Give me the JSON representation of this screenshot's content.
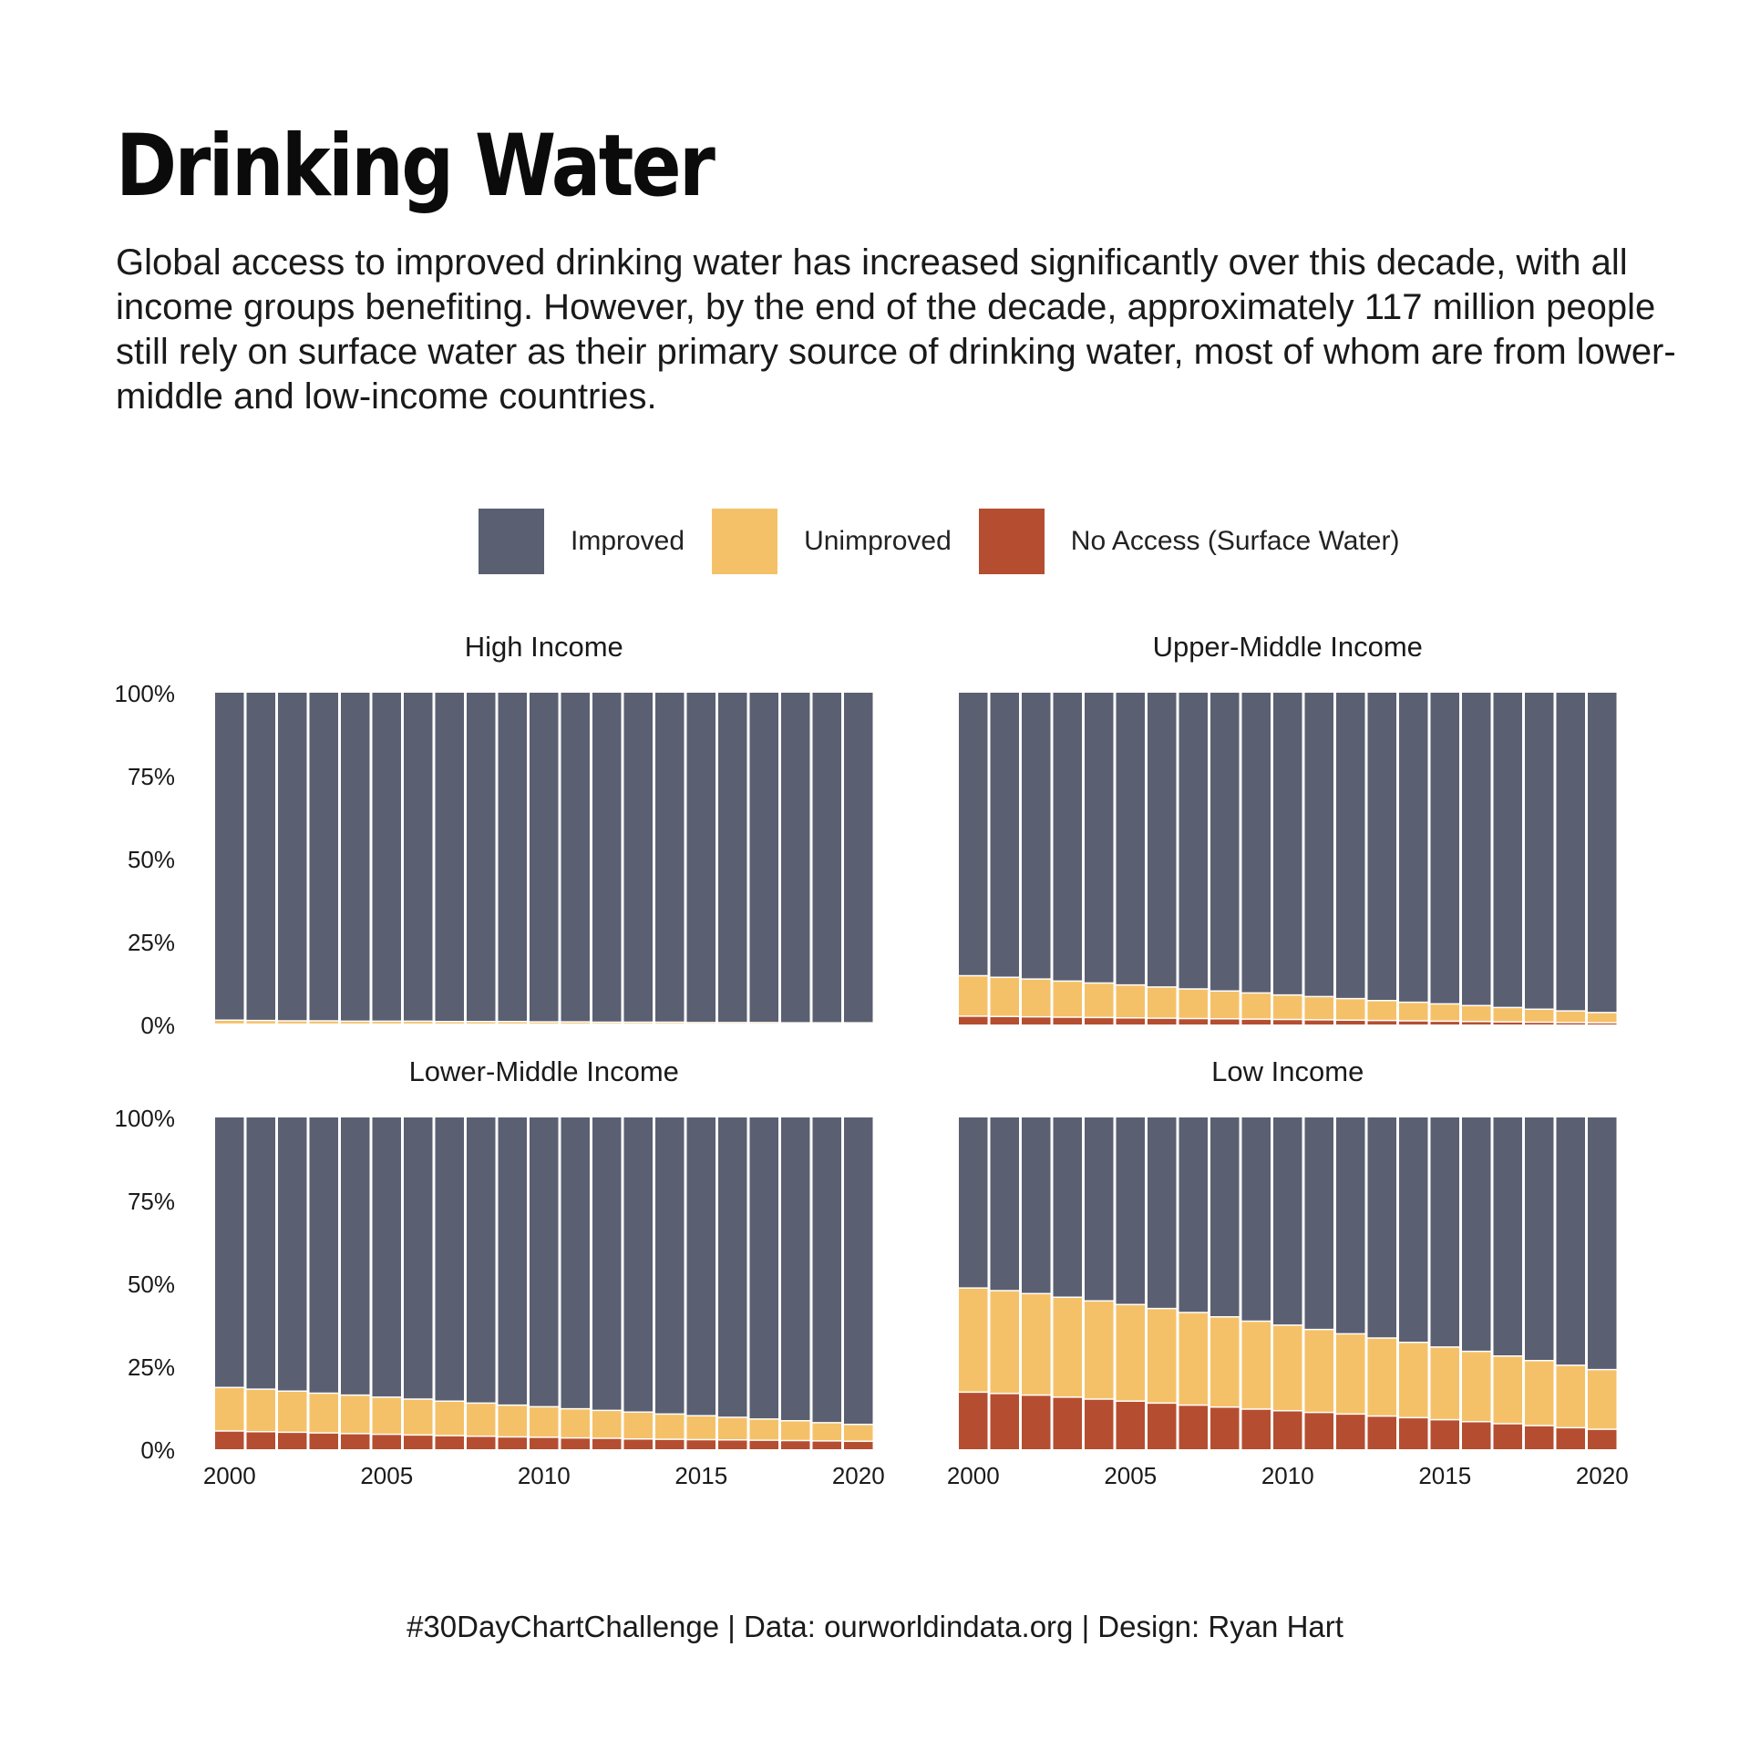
{
  "title": "Drinking Water",
  "subtitle": "Global access to improved drinking water has increased significantly over this decade, with all income groups benefiting. However, by the end of the decade, approximately 117 million people still rely on surface water as their primary source of drinking water, most of whom are from lower-middle and low-income countries.",
  "legend": [
    {
      "label": "Improved",
      "color": "#5b5f72"
    },
    {
      "label": "Unimproved",
      "color": "#f5c168"
    },
    {
      "label": "No Access (Surface Water)",
      "color": "#b54e31"
    }
  ],
  "footer": "#30DayChartChallenge | Data: ourworldindata.org | Design: Ryan Hart",
  "chart_data": [
    {
      "type": "bar",
      "stacked": true,
      "title": "High Income",
      "years": [
        2000,
        2001,
        2002,
        2003,
        2004,
        2005,
        2006,
        2007,
        2008,
        2009,
        2010,
        2011,
        2012,
        2013,
        2014,
        2015,
        2016,
        2017,
        2018,
        2019,
        2020
      ],
      "y_ticks": [
        "0%",
        "25%",
        "50%",
        "75%",
        "100%"
      ],
      "ylim": [
        0,
        100
      ],
      "x_ticks": [
        "2000",
        "2005",
        "2010",
        "2015",
        "2020"
      ],
      "series": [
        {
          "name": "No Access (Surface Water)",
          "values": [
            0.1,
            0.1,
            0.1,
            0.1,
            0.1,
            0.1,
            0.1,
            0.1,
            0.1,
            0.1,
            0.1,
            0.1,
            0.1,
            0.1,
            0.1,
            0.1,
            0.1,
            0.1,
            0.1,
            0.1,
            0.1
          ]
        },
        {
          "name": "Unimproved",
          "values": [
            1.2,
            1.1,
            1.0,
            1.0,
            0.9,
            0.9,
            0.9,
            0.8,
            0.8,
            0.8,
            0.7,
            0.7,
            0.6,
            0.6,
            0.6,
            0.5,
            0.5,
            0.5,
            0.4,
            0.4,
            0.4
          ]
        },
        {
          "name": "Improved",
          "values": [
            98.7,
            98.8,
            98.9,
            98.9,
            99.0,
            99.0,
            99.0,
            99.1,
            99.1,
            99.1,
            99.2,
            99.2,
            99.3,
            99.3,
            99.3,
            99.4,
            99.4,
            99.4,
            99.5,
            99.5,
            99.5
          ]
        }
      ]
    },
    {
      "type": "bar",
      "stacked": true,
      "title": "Upper-Middle Income",
      "years": [
        2000,
        2001,
        2002,
        2003,
        2004,
        2005,
        2006,
        2007,
        2008,
        2009,
        2010,
        2011,
        2012,
        2013,
        2014,
        2015,
        2016,
        2017,
        2018,
        2019,
        2020
      ],
      "y_ticks": [
        "0%",
        "25%",
        "50%",
        "75%",
        "100%"
      ],
      "ylim": [
        0,
        100
      ],
      "x_ticks": [
        "2000",
        "2005",
        "2010",
        "2015",
        "2020"
      ],
      "series": [
        {
          "name": "No Access (Surface Water)",
          "values": [
            2.5,
            2.4,
            2.3,
            2.2,
            2.1,
            2.0,
            1.9,
            1.8,
            1.7,
            1.6,
            1.5,
            1.4,
            1.3,
            1.2,
            1.1,
            1.0,
            0.9,
            0.8,
            0.7,
            0.6,
            0.5
          ]
        },
        {
          "name": "Unimproved",
          "values": [
            12.2,
            11.8,
            11.4,
            10.9,
            10.4,
            9.9,
            9.4,
            8.9,
            8.4,
            7.9,
            7.4,
            7.0,
            6.5,
            6.0,
            5.6,
            5.2,
            4.8,
            4.3,
            3.9,
            3.5,
            3.1
          ]
        },
        {
          "name": "Improved",
          "values": [
            85.3,
            85.8,
            86.3,
            86.9,
            87.5,
            88.1,
            88.7,
            89.3,
            89.9,
            90.5,
            91.1,
            91.6,
            92.2,
            92.8,
            93.3,
            93.8,
            94.3,
            94.9,
            95.4,
            95.9,
            96.4
          ]
        }
      ]
    },
    {
      "type": "bar",
      "stacked": true,
      "title": "Lower-Middle Income",
      "years": [
        2000,
        2001,
        2002,
        2003,
        2004,
        2005,
        2006,
        2007,
        2008,
        2009,
        2010,
        2011,
        2012,
        2013,
        2014,
        2015,
        2016,
        2017,
        2018,
        2019,
        2020
      ],
      "y_ticks": [
        "0%",
        "25%",
        "50%",
        "75%",
        "100%"
      ],
      "ylim": [
        0,
        100
      ],
      "x_ticks": [
        "2000",
        "2005",
        "2010",
        "2015",
        "2020"
      ],
      "series": [
        {
          "name": "No Access (Surface Water)",
          "values": [
            5.5,
            5.3,
            5.1,
            4.9,
            4.7,
            4.5,
            4.3,
            4.1,
            3.9,
            3.7,
            3.6,
            3.4,
            3.3,
            3.1,
            3.0,
            2.9,
            2.8,
            2.7,
            2.6,
            2.5,
            2.4
          ]
        },
        {
          "name": "Unimproved",
          "values": [
            13.1,
            12.8,
            12.4,
            12.0,
            11.6,
            11.2,
            10.8,
            10.4,
            10.0,
            9.6,
            9.2,
            8.8,
            8.4,
            8.1,
            7.6,
            7.2,
            6.8,
            6.4,
            6.0,
            5.5,
            5.1
          ]
        },
        {
          "name": "Improved",
          "values": [
            81.4,
            81.9,
            82.5,
            83.1,
            83.7,
            84.3,
            84.9,
            85.5,
            86.1,
            86.7,
            87.2,
            87.8,
            88.3,
            88.8,
            89.4,
            89.9,
            90.4,
            90.9,
            91.4,
            92.0,
            92.5
          ]
        }
      ]
    },
    {
      "type": "bar",
      "stacked": true,
      "title": "Low Income",
      "years": [
        2000,
        2001,
        2002,
        2003,
        2004,
        2005,
        2006,
        2007,
        2008,
        2009,
        2010,
        2011,
        2012,
        2013,
        2014,
        2015,
        2016,
        2017,
        2018,
        2019,
        2020
      ],
      "y_ticks": [
        "0%",
        "25%",
        "50%",
        "75%",
        "100%"
      ],
      "ylim": [
        0,
        100
      ],
      "x_ticks": [
        "2000",
        "2005",
        "2010",
        "2015",
        "2020"
      ],
      "series": [
        {
          "name": "No Access (Surface Water)",
          "values": [
            17.2,
            16.8,
            16.3,
            15.7,
            15.1,
            14.5,
            13.9,
            13.3,
            12.7,
            12.1,
            11.6,
            11.1,
            10.6,
            10.0,
            9.5,
            8.9,
            8.3,
            7.7,
            7.1,
            6.5,
            6.0
          ]
        },
        {
          "name": "Unimproved",
          "values": [
            31.4,
            31.0,
            30.6,
            30.1,
            29.6,
            29.1,
            28.5,
            27.9,
            27.2,
            26.5,
            25.8,
            25.0,
            24.2,
            23.5,
            22.7,
            21.9,
            21.2,
            20.4,
            19.6,
            18.8,
            18.0
          ]
        },
        {
          "name": "Improved",
          "values": [
            51.4,
            52.2,
            53.1,
            54.2,
            55.3,
            56.4,
            57.6,
            58.8,
            60.1,
            61.4,
            62.6,
            63.9,
            65.2,
            66.5,
            67.8,
            69.2,
            70.5,
            71.9,
            73.3,
            74.7,
            76.0
          ]
        }
      ]
    }
  ]
}
